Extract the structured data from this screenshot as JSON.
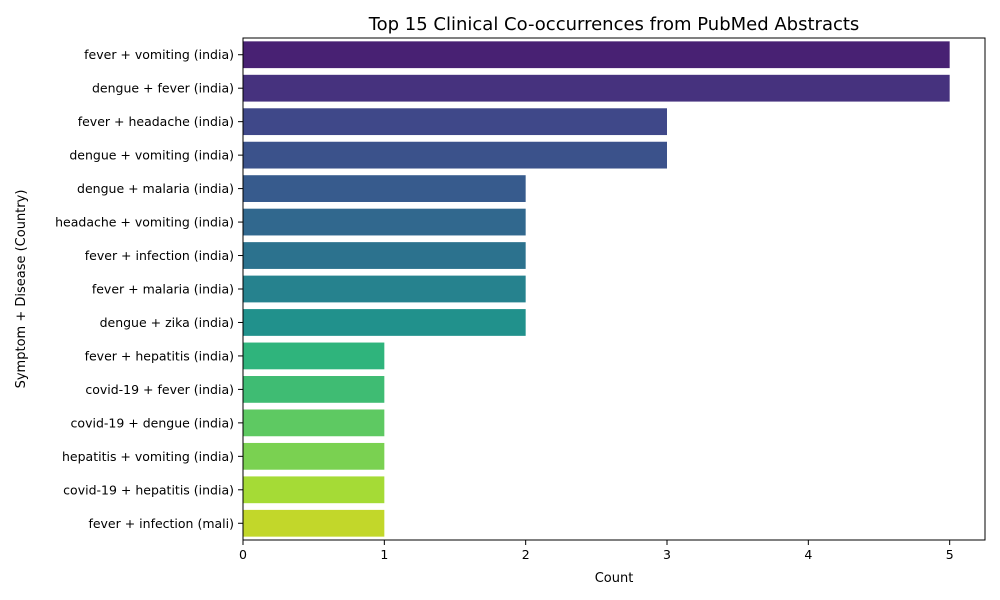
{
  "chart_data": {
    "type": "bar",
    "orientation": "horizontal",
    "title": "Top 15 Clinical Co-occurrences from PubMed Abstracts",
    "xlabel": "Count",
    "ylabel": "Symptom + Disease (Country)",
    "xlim": [
      0,
      5.25
    ],
    "xticks": [
      0,
      1,
      2,
      3,
      4,
      5
    ],
    "grid": false,
    "legend": "none",
    "palette": "viridis",
    "categories": [
      "fever + vomiting (india)",
      "dengue + fever (india)",
      "fever + headache (india)",
      "dengue + vomiting (india)",
      "dengue + malaria (india)",
      "headache + vomiting (india)",
      "fever + infection (india)",
      "fever + malaria (india)",
      "dengue + zika (india)",
      "fever + hepatitis (india)",
      "covid-19 + fever (india)",
      "covid-19 + dengue (india)",
      "hepatitis + vomiting (india)",
      "covid-19 + hepatitis (india)",
      "fever + infection (mali)"
    ],
    "values": [
      5,
      5,
      3,
      3,
      2,
      2,
      2,
      2,
      2,
      1,
      1,
      1,
      1,
      1,
      1
    ],
    "colors": [
      "#482173",
      "#46327e",
      "#3f4889",
      "#3b528b",
      "#375b8d",
      "#31688e",
      "#2c728e",
      "#26828e",
      "#21918c",
      "#2fb47c",
      "#3fbc73",
      "#5ec962",
      "#7ad151",
      "#a5db36",
      "#c2d72a"
    ]
  }
}
